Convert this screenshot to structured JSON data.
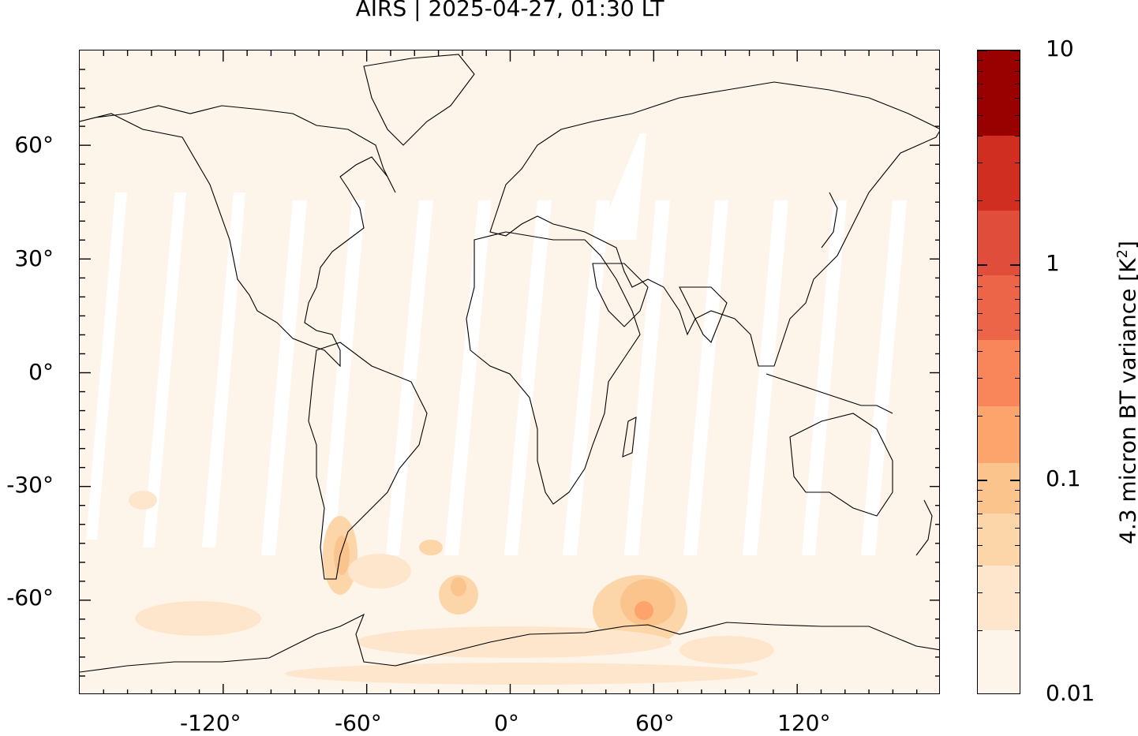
{
  "title": "AIRS | 2025-04-27, 01:30 LT",
  "map": {
    "projection": "plate carree",
    "lon_range": [
      -180,
      180
    ],
    "lat_range": [
      -85,
      85
    ],
    "x_ticks": [
      {
        "lon": -120,
        "label": "-120°"
      },
      {
        "lon": -60,
        "label": "-60°"
      },
      {
        "lon": 0,
        "label": "0°"
      },
      {
        "lon": 60,
        "label": "60°"
      },
      {
        "lon": 120,
        "label": "120°"
      }
    ],
    "y_ticks": [
      {
        "lat": 60,
        "label": "60°"
      },
      {
        "lat": 30,
        "label": "30°"
      },
      {
        "lat": 0,
        "label": "0°"
      },
      {
        "lat": -30,
        "label": "-30°"
      },
      {
        "lat": -60,
        "label": "-60°"
      }
    ],
    "background_color": "#fef5ea",
    "data_gap_color": "#ffffff",
    "coastline_color": "#000000"
  },
  "colorbar": {
    "label_main": "4.3 micron BT variance [K",
    "label_sup": "2",
    "label_end": "]",
    "scale": "log",
    "range": [
      0.01,
      10
    ],
    "tick_labels": [
      {
        "value": 10,
        "label": "10"
      },
      {
        "value": 1,
        "label": "1"
      },
      {
        "value": 0.1,
        "label": "0.1"
      },
      {
        "value": 0.01,
        "label": "0.01"
      }
    ],
    "levels": [
      0.01,
      0.02,
      0.04,
      0.07,
      0.12,
      0.22,
      0.45,
      0.9,
      1.8,
      4.0,
      10
    ],
    "colors": [
      "#fef5ea",
      "#fde6cc",
      "#fcd6a9",
      "#fcc48d",
      "#fca46c",
      "#f8865a",
      "#ec6549",
      "#e14d3b",
      "#cf2e21",
      "#990000"
    ]
  }
}
